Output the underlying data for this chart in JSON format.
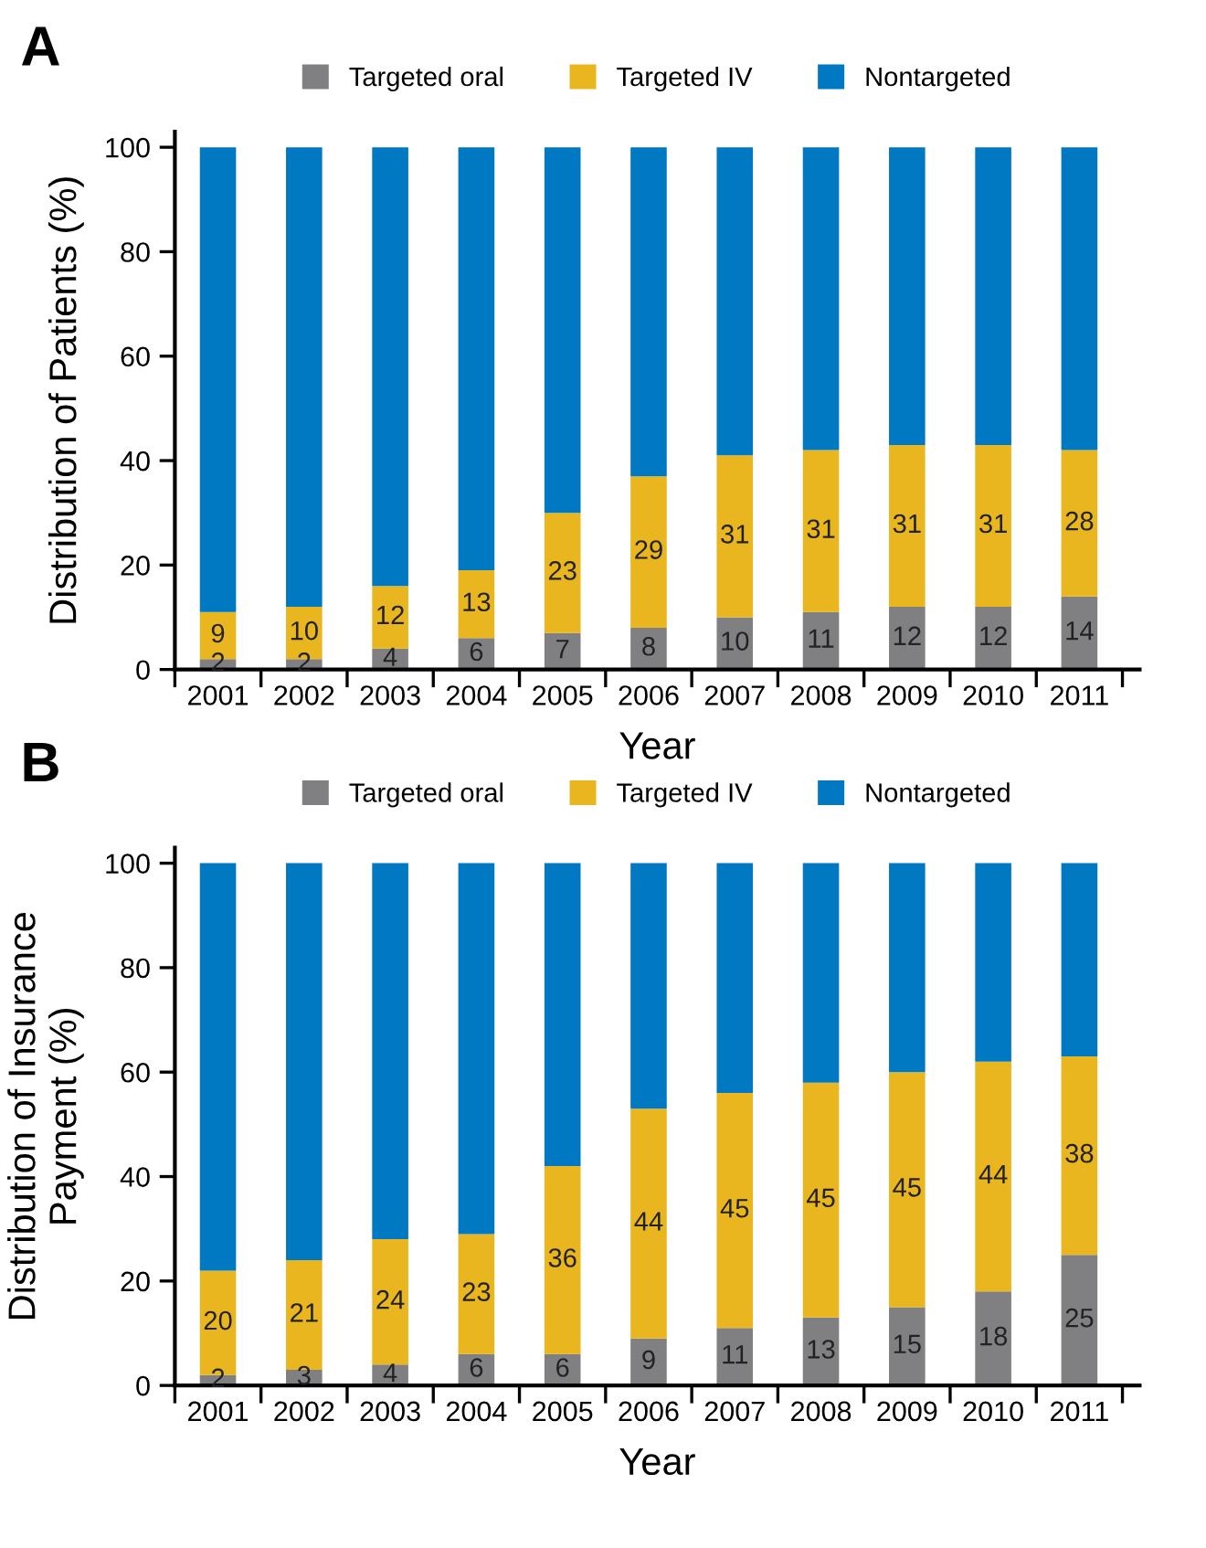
{
  "chart_data": [
    {
      "type": "bar",
      "title": "A",
      "stacked": true,
      "xlabel": "Year",
      "ylabel": "Distribution of Patients (%)",
      "legend": "top",
      "grid": false,
      "categories": [
        "2001",
        "2002",
        "2003",
        "2004",
        "2005",
        "2006",
        "2007",
        "2008",
        "2009",
        "2010",
        "2011"
      ],
      "ylim": [
        0,
        103
      ],
      "yticks": [
        0,
        20,
        40,
        60,
        80,
        100
      ],
      "series": [
        {
          "name": "Targeted oral",
          "color": "#808083",
          "values": [
            2,
            2,
            4,
            6,
            7,
            8,
            10,
            11,
            12,
            12,
            14
          ],
          "value_labels": [
            "2",
            "2",
            "4",
            "6",
            "7",
            "8",
            "10",
            "11",
            "12",
            "12",
            "14"
          ]
        },
        {
          "name": "Targeted IV",
          "color": "#e9b61f",
          "values": [
            9,
            10,
            12,
            13,
            23,
            29,
            31,
            31,
            31,
            31,
            28
          ],
          "value_labels": [
            "9",
            "10",
            "12",
            "13",
            "23",
            "29",
            "31",
            "31",
            "31",
            "31",
            "28"
          ]
        },
        {
          "name": "Nontargeted",
          "color": "#0079c2",
          "values": [
            89,
            88,
            84,
            81,
            70,
            63,
            59,
            58,
            57,
            57,
            58
          ]
        }
      ]
    },
    {
      "type": "bar",
      "title": "B",
      "stacked": true,
      "xlabel": "Year",
      "ylabel": "Distribution of Insurance\nPayment (%)",
      "legend": "top",
      "grid": false,
      "categories": [
        "2001",
        "2002",
        "2003",
        "2004",
        "2005",
        "2006",
        "2007",
        "2008",
        "2009",
        "2010",
        "2011"
      ],
      "ylim": [
        0,
        103
      ],
      "yticks": [
        0,
        20,
        40,
        60,
        80,
        100
      ],
      "series": [
        {
          "name": "Targeted oral",
          "color": "#808083",
          "values": [
            2,
            3,
            4,
            6,
            6,
            9,
            11,
            13,
            15,
            18,
            25
          ],
          "value_labels": [
            "2",
            "3",
            "4",
            "6",
            "6",
            "9",
            "11",
            "13",
            "15",
            "18",
            "25"
          ]
        },
        {
          "name": "Targeted IV",
          "color": "#e9b61f",
          "values": [
            20,
            21,
            24,
            23,
            36,
            44,
            45,
            45,
            45,
            44,
            38
          ],
          "value_labels": [
            "20",
            "21",
            "24",
            "23",
            "36",
            "44",
            "45",
            "45",
            "45",
            "44",
            "38"
          ]
        },
        {
          "name": "Nontargeted",
          "color": "#0079c2",
          "values": [
            78,
            76,
            72,
            71,
            58,
            47,
            44,
            42,
            40,
            38,
            37
          ]
        }
      ]
    }
  ]
}
